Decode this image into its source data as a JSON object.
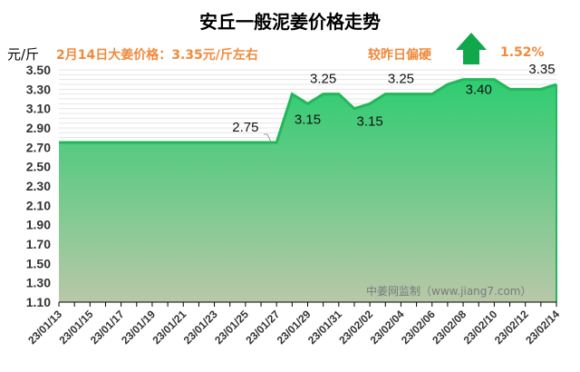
{
  "header": {
    "title": "安丘一般泥姜价格走势",
    "unit": "元/斤",
    "price_note": "2月14日大姜价格：3.35元/斤左右",
    "compare_label": "较昨日偏硬",
    "change_pct": "1.52%",
    "trend_icon": "up-arrow-icon",
    "watermark": "中姜网监制（www.jiang7.com）"
  },
  "colors": {
    "area_top": "#2ecc71",
    "area_bottom": "#b8c8a8",
    "line": "#22b85a",
    "arrow": "#10a84a",
    "accent_text": "#f08a3c"
  },
  "chart_data": {
    "type": "area",
    "title": "安丘一般泥姜价格走势",
    "ylabel": "元/斤",
    "ylim": [
      1.1,
      3.5
    ],
    "yticks": [
      "3.50",
      "3.30",
      "3.10",
      "2.90",
      "2.70",
      "2.50",
      "2.30",
      "2.10",
      "1.90",
      "1.70",
      "1.50",
      "1.30",
      "1.10"
    ],
    "xtick_labels": [
      "23/01/13",
      "23/01/15",
      "23/01/17",
      "23/01/19",
      "23/01/21",
      "23/01/23",
      "23/01/25",
      "23/01/27",
      "23/01/29",
      "23/01/31",
      "23/02/02",
      "23/02/04",
      "23/02/06",
      "23/02/08",
      "23/02/10",
      "23/02/12",
      "23/02/14"
    ],
    "x": [
      "23/01/13",
      "23/01/14",
      "23/01/15",
      "23/01/16",
      "23/01/17",
      "23/01/18",
      "23/01/19",
      "23/01/20",
      "23/01/21",
      "23/01/22",
      "23/01/23",
      "23/01/24",
      "23/01/25",
      "23/01/26",
      "23/01/27",
      "23/01/28",
      "23/01/29",
      "23/01/30",
      "23/01/31",
      "23/02/01",
      "23/02/02",
      "23/02/03",
      "23/02/04",
      "23/02/05",
      "23/02/06",
      "23/02/07",
      "23/02/08",
      "23/02/09",
      "23/02/10",
      "23/02/11",
      "23/02/12",
      "23/02/13",
      "23/02/14"
    ],
    "values": [
      2.75,
      2.75,
      2.75,
      2.75,
      2.75,
      2.75,
      2.75,
      2.75,
      2.75,
      2.75,
      2.75,
      2.75,
      2.75,
      2.75,
      2.75,
      3.25,
      3.15,
      3.25,
      3.25,
      3.1,
      3.15,
      3.25,
      3.25,
      3.25,
      3.25,
      3.35,
      3.4,
      3.4,
      3.4,
      3.3,
      3.3,
      3.3,
      3.35
    ],
    "data_labels": [
      {
        "x": "23/01/25",
        "text": "2.75"
      },
      {
        "x": "23/01/29",
        "text": "3.15"
      },
      {
        "x": "23/01/30",
        "text": "3.25"
      },
      {
        "x": "23/02/02",
        "text": "3.15"
      },
      {
        "x": "23/02/04",
        "text": "3.25"
      },
      {
        "x": "23/02/09",
        "text": "3.40"
      },
      {
        "x": "23/02/14",
        "text": "3.35"
      }
    ],
    "grid": true,
    "legend": "none"
  }
}
